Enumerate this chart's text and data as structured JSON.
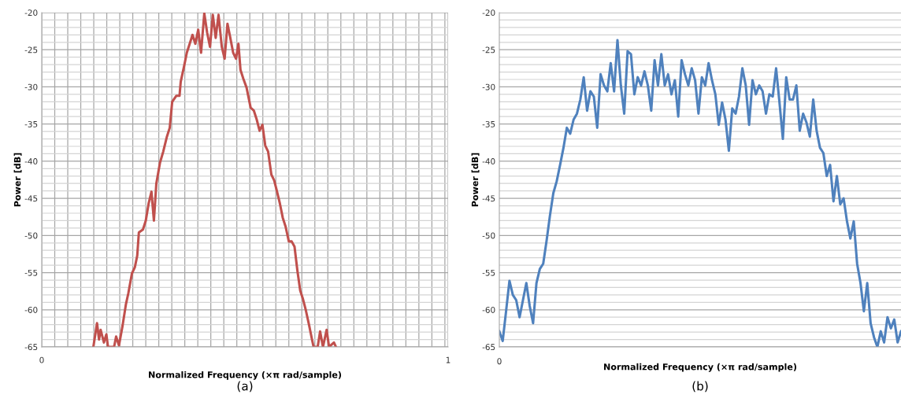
{
  "chart_data": [
    {
      "type": "line",
      "xlabel": "Normalized Frequency (×π rad/sample)",
      "ylabel": "Power [dB]",
      "annotations": [
        "(a)"
      ],
      "grid": true,
      "xlim": [
        0,
        1
      ],
      "ylim": [
        -65,
        -20
      ],
      "xticks": [
        0,
        {
          "value": 0.032,
          "label": null
        },
        {
          "value": 0.064,
          "label": null
        },
        {
          "value": 0.096,
          "label": null
        },
        {
          "value": 0.128,
          "label": null
        },
        {
          "value": 0.16,
          "label": null
        },
        {
          "value": 0.192,
          "label": null
        },
        {
          "value": 0.224,
          "label": null
        },
        {
          "value": 0.256,
          "label": null
        },
        {
          "value": 0.288,
          "label": null
        },
        {
          "value": 0.32,
          "label": null
        },
        {
          "value": 0.352,
          "label": null
        },
        {
          "value": 0.384,
          "label": null
        },
        {
          "value": 0.416,
          "label": null
        },
        {
          "value": 0.448,
          "label": null
        },
        {
          "value": 0.48,
          "label": null
        },
        {
          "value": 0.512,
          "label": null
        },
        {
          "value": 0.544,
          "label": null
        },
        {
          "value": 0.576,
          "label": null
        },
        {
          "value": 0.608,
          "label": null
        },
        {
          "value": 0.64,
          "label": null
        },
        {
          "value": 0.672,
          "label": null
        },
        {
          "value": 0.704,
          "label": null
        },
        {
          "value": 0.736,
          "label": null
        },
        {
          "value": 0.768,
          "label": null
        },
        {
          "value": 0.8,
          "label": null
        },
        {
          "value": 0.832,
          "label": null
        },
        {
          "value": 0.864,
          "label": null
        },
        {
          "value": 0.896,
          "label": null
        },
        {
          "value": 0.928,
          "label": null
        },
        {
          "value": 0.96,
          "label": null
        },
        {
          "value": 0.992,
          "label": null
        },
        1
      ],
      "yticks": [
        -65,
        {
          "value": -64,
          "label": null
        },
        {
          "value": -63,
          "label": null
        },
        {
          "value": -62,
          "label": null
        },
        {
          "value": -61,
          "label": null
        },
        -60,
        {
          "value": -59,
          "label": null
        },
        {
          "value": -58,
          "label": null
        },
        {
          "value": -57,
          "label": null
        },
        {
          "value": -56,
          "label": null
        },
        -55,
        {
          "value": -54,
          "label": null
        },
        {
          "value": -53,
          "label": null
        },
        {
          "value": -52,
          "label": null
        },
        {
          "value": -51,
          "label": null
        },
        -50,
        {
          "value": -49,
          "label": null
        },
        {
          "value": -48,
          "label": null
        },
        {
          "value": -47,
          "label": null
        },
        {
          "value": -46,
          "label": null
        },
        -45,
        {
          "value": -44,
          "label": null
        },
        {
          "value": -43,
          "label": null
        },
        {
          "value": -42,
          "label": null
        },
        {
          "value": -41,
          "label": null
        },
        -40,
        {
          "value": -39,
          "label": null
        },
        {
          "value": -38,
          "label": null
        },
        {
          "value": -37,
          "label": null
        },
        {
          "value": -36,
          "label": null
        },
        -35,
        {
          "value": -34,
          "label": null
        },
        {
          "value": -33,
          "label": null
        },
        {
          "value": -32,
          "label": null
        },
        {
          "value": -31,
          "label": null
        },
        -30,
        {
          "value": -29,
          "label": null
        },
        {
          "value": -28,
          "label": null
        },
        {
          "value": -27,
          "label": null
        },
        {
          "value": -26,
          "label": null
        },
        -25,
        {
          "value": -24,
          "label": null
        },
        {
          "value": -23,
          "label": null
        },
        {
          "value": -22,
          "label": null
        },
        {
          "value": -21,
          "label": null
        },
        -20
      ],
      "series": [
        {
          "color": "#c0504d",
          "x": [
            0.127,
            0.136,
            0.141,
            0.145,
            0.153,
            0.159,
            0.163,
            0.178,
            0.183,
            0.19,
            0.199,
            0.207,
            0.213,
            0.222,
            0.229,
            0.235,
            0.239,
            0.249,
            0.256,
            0.263,
            0.27,
            0.276,
            0.282,
            0.291,
            0.299,
            0.308,
            0.315,
            0.321,
            0.331,
            0.339,
            0.342,
            0.35,
            0.357,
            0.364,
            0.371,
            0.378,
            0.385,
            0.392,
            0.4,
            0.407,
            0.414,
            0.421,
            0.428,
            0.435,
            0.443,
            0.45,
            0.457,
            0.464,
            0.471,
            0.478,
            0.484,
            0.489,
            0.496,
            0.504,
            0.514,
            0.522,
            0.529,
            0.536,
            0.543,
            0.55,
            0.557,
            0.565,
            0.572,
            0.579,
            0.586,
            0.593,
            0.6,
            0.608,
            0.615,
            0.622,
            0.629,
            0.636,
            0.643,
            0.65,
            0.658,
            0.665,
            0.669,
            0.679,
            0.685,
            0.692,
            0.701,
            0.707,
            0.719,
            0.724
          ],
          "values": [
            -65,
            -61.8,
            -64,
            -62.7,
            -64.4,
            -63.3,
            -65,
            -65,
            -63.6,
            -64.8,
            -62.1,
            -59.3,
            -57.8,
            -55.1,
            -54.3,
            -52.7,
            -49.6,
            -49.2,
            -48,
            -45.7,
            -44.1,
            -48,
            -43,
            -40.2,
            -38.7,
            -36.7,
            -35.5,
            -32,
            -31.2,
            -31.2,
            -29.3,
            -27.3,
            -25.4,
            -24.2,
            -23,
            -24.2,
            -22.3,
            -25.4,
            -20.1,
            -22.7,
            -24.6,
            -20.3,
            -23.4,
            -20.3,
            -24.6,
            -26.2,
            -21.5,
            -23.4,
            -25.4,
            -26.2,
            -24.2,
            -27.7,
            -28.9,
            -30.1,
            -32.8,
            -33.2,
            -34.4,
            -35.9,
            -35.1,
            -37.9,
            -38.7,
            -41.8,
            -42.6,
            -44.1,
            -45.7,
            -47.6,
            -48.8,
            -50.8,
            -50.8,
            -51.5,
            -54.7,
            -57.4,
            -58.6,
            -60.1,
            -62.1,
            -64,
            -65,
            -65,
            -62.9,
            -65,
            -62.7,
            -65,
            -64.4,
            -65
          ]
        }
      ]
    },
    {
      "type": "line",
      "xlabel": "Normalized Frequency (×π rad/sample)",
      "ylabel": "Power [dB]",
      "annotations": [
        "0",
        "(b)"
      ],
      "grid": "y",
      "ylim": [
        -65,
        -20
      ],
      "categories": [
        null,
        null,
        null,
        null,
        null,
        null,
        null,
        null,
        null,
        null,
        null,
        null,
        null,
        null,
        null,
        null,
        null,
        null,
        null,
        null,
        null,
        null,
        null,
        null,
        null,
        null,
        null,
        null,
        null,
        null,
        null,
        null,
        null,
        null,
        null,
        null,
        null,
        null,
        null,
        null,
        null,
        null,
        null,
        null,
        null,
        null,
        null,
        null,
        null,
        null,
        null,
        null,
        null,
        null,
        null,
        null,
        null,
        null,
        null,
        null,
        null,
        null,
        null,
        null,
        null,
        null,
        null,
        null,
        null,
        null,
        null,
        null,
        null,
        null,
        null,
        null,
        null,
        null,
        null,
        null,
        null,
        null,
        null,
        null,
        null,
        null,
        null,
        null,
        null,
        null,
        null,
        null,
        null,
        null,
        null,
        null,
        null,
        null,
        null,
        null,
        null,
        null,
        null,
        null,
        null,
        null,
        null,
        null,
        null,
        null,
        null,
        null,
        null,
        null,
        null,
        null,
        null,
        null,
        null,
        null
      ],
      "yticks": [
        -65,
        {
          "value": -64,
          "label": null
        },
        {
          "value": -63,
          "label": null
        },
        {
          "value": -62,
          "label": null
        },
        {
          "value": -61,
          "label": null
        },
        -60,
        {
          "value": -59,
          "label": null
        },
        {
          "value": -58,
          "label": null
        },
        {
          "value": -57,
          "label": null
        },
        {
          "value": -56,
          "label": null
        },
        -55,
        {
          "value": -54,
          "label": null
        },
        {
          "value": -53,
          "label": null
        },
        {
          "value": -52,
          "label": null
        },
        {
          "value": -51,
          "label": null
        },
        -50,
        {
          "value": -49,
          "label": null
        },
        {
          "value": -48,
          "label": null
        },
        {
          "value": -47,
          "label": null
        },
        {
          "value": -46,
          "label": null
        },
        -45,
        {
          "value": -44,
          "label": null
        },
        {
          "value": -43,
          "label": null
        },
        {
          "value": -42,
          "label": null
        },
        {
          "value": -41,
          "label": null
        },
        -40,
        {
          "value": -39,
          "label": null
        },
        {
          "value": -38,
          "label": null
        },
        {
          "value": -37,
          "label": null
        },
        {
          "value": -36,
          "label": null
        },
        -35,
        {
          "value": -34,
          "label": null
        },
        {
          "value": -33,
          "label": null
        },
        {
          "value": -32,
          "label": null
        },
        {
          "value": -31,
          "label": null
        },
        -30,
        {
          "value": -29,
          "label": null
        },
        {
          "value": -28,
          "label": null
        },
        {
          "value": -27,
          "label": null
        },
        {
          "value": -26,
          "label": null
        },
        -25,
        {
          "value": -24,
          "label": null
        },
        {
          "value": -23,
          "label": null
        },
        {
          "value": -22,
          "label": null
        },
        {
          "value": -21,
          "label": null
        },
        -20
      ],
      "series": [
        {
          "color": "#4f81bd",
          "values": [
            -62.9,
            -64.2,
            -60.2,
            -56.1,
            -58,
            -58.7,
            -61,
            -58.7,
            -56.4,
            -59.5,
            -61.8,
            -56.4,
            -54.5,
            -53.8,
            -50.7,
            -47.3,
            -44.3,
            -42.7,
            -40.5,
            -38.2,
            -35.5,
            -36.3,
            -34.4,
            -33.6,
            -31.7,
            -28.7,
            -33.2,
            -30.6,
            -31.3,
            -35.5,
            -28.3,
            -29.8,
            -30.6,
            -26.8,
            -30.6,
            -23.7,
            -29.8,
            -33.6,
            -25.2,
            -25.6,
            -31,
            -28.7,
            -29.8,
            -27.9,
            -29.8,
            -33.2,
            -26.4,
            -29.8,
            -25.6,
            -29.8,
            -28.3,
            -31,
            -29.1,
            -34,
            -26.4,
            -28.3,
            -29.8,
            -27.5,
            -29.1,
            -33.6,
            -28.7,
            -29.8,
            -26.8,
            -29.1,
            -31,
            -35.1,
            -32.1,
            -34.4,
            -38.6,
            -32.9,
            -33.6,
            -31.3,
            -27.5,
            -29.8,
            -35.1,
            -29.1,
            -31,
            -29.8,
            -30.6,
            -33.6,
            -31,
            -31.3,
            -27.5,
            -32.1,
            -37,
            -28.7,
            -31.7,
            -31.7,
            -29.8,
            -35.9,
            -33.6,
            -34.8,
            -36.7,
            -31.7,
            -35.9,
            -38.2,
            -38.9,
            -42,
            -40.5,
            -45.4,
            -42,
            -45.8,
            -45,
            -48.1,
            -50.4,
            -48.1,
            -53.8,
            -56.4,
            -60.2,
            -56.4,
            -61.8,
            -63.7,
            -65,
            -62.9,
            -64.4,
            -61,
            -62.5,
            -61.3,
            -64.4,
            -62.9
          ]
        }
      ]
    }
  ]
}
